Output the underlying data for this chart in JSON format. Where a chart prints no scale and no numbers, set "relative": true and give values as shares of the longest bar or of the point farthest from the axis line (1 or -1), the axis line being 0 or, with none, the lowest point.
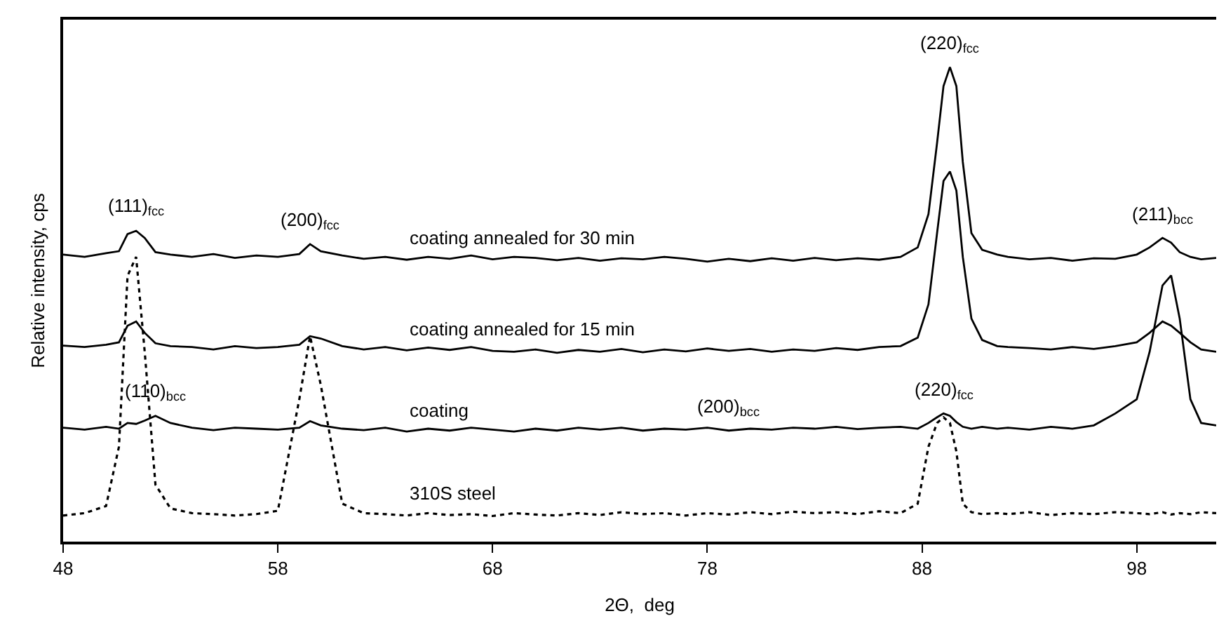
{
  "chart_data": {
    "type": "line",
    "relative": true,
    "xlabel": "2Θ,  deg",
    "ylabel": "Relative intensity, cps",
    "xlim": [
      48,
      101.7
    ],
    "xticks": [
      48,
      58,
      68,
      78,
      88,
      98
    ],
    "legend": false,
    "marker": "none",
    "x": [
      48,
      49,
      50,
      50.6,
      51.0,
      51.4,
      51.8,
      52.3,
      53,
      54,
      55,
      56,
      57,
      58,
      59,
      59.5,
      60,
      61,
      62,
      63,
      64,
      65,
      66,
      67,
      68,
      69,
      70,
      71,
      72,
      73,
      74,
      75,
      76,
      77,
      78,
      79,
      80,
      81,
      82,
      83,
      84,
      85,
      86,
      87,
      87.8,
      88.3,
      88.7,
      89.0,
      89.3,
      89.6,
      89.9,
      90.3,
      90.8,
      91.5,
      92,
      93,
      94,
      95,
      96,
      97,
      98,
      98.6,
      99.2,
      99.6,
      100.0,
      100.5,
      101,
      101.7
    ],
    "series": [
      {
        "name": "coating annealed for 30 min",
        "color": "#000000",
        "line_style": "solid",
        "values": [
          0.605,
          0.6,
          0.608,
          0.612,
          0.648,
          0.655,
          0.64,
          0.61,
          0.605,
          0.6,
          0.606,
          0.598,
          0.603,
          0.6,
          0.606,
          0.627,
          0.612,
          0.603,
          0.596,
          0.6,
          0.594,
          0.6,
          0.596,
          0.603,
          0.595,
          0.6,
          0.598,
          0.593,
          0.598,
          0.592,
          0.597,
          0.595,
          0.6,
          0.596,
          0.59,
          0.596,
          0.591,
          0.597,
          0.592,
          0.598,
          0.593,
          0.597,
          0.594,
          0.6,
          0.62,
          0.69,
          0.84,
          0.96,
          1.0,
          0.96,
          0.8,
          0.65,
          0.615,
          0.605,
          0.6,
          0.595,
          0.598,
          0.592,
          0.597,
          0.596,
          0.605,
          0.62,
          0.64,
          0.63,
          0.61,
          0.6,
          0.595,
          0.598
        ]
      },
      {
        "name": "coating annealed for 15 min",
        "color": "#000000",
        "line_style": "solid",
        "values": [
          0.413,
          0.41,
          0.415,
          0.42,
          0.455,
          0.464,
          0.44,
          0.418,
          0.412,
          0.41,
          0.405,
          0.412,
          0.408,
          0.41,
          0.415,
          0.433,
          0.428,
          0.412,
          0.405,
          0.41,
          0.403,
          0.409,
          0.404,
          0.41,
          0.402,
          0.4,
          0.405,
          0.398,
          0.404,
          0.4,
          0.406,
          0.399,
          0.405,
          0.401,
          0.407,
          0.402,
          0.406,
          0.4,
          0.405,
          0.402,
          0.408,
          0.404,
          0.41,
          0.412,
          0.43,
          0.5,
          0.65,
          0.76,
          0.78,
          0.74,
          0.6,
          0.47,
          0.425,
          0.412,
          0.41,
          0.408,
          0.405,
          0.41,
          0.406,
          0.412,
          0.42,
          0.44,
          0.464,
          0.455,
          0.44,
          0.42,
          0.405,
          0.4
        ]
      },
      {
        "name": "coating",
        "color": "#000000",
        "line_style": "solid",
        "values": [
          0.24,
          0.236,
          0.242,
          0.238,
          0.25,
          0.248,
          0.255,
          0.265,
          0.25,
          0.24,
          0.235,
          0.24,
          0.238,
          0.236,
          0.24,
          0.254,
          0.245,
          0.238,
          0.235,
          0.24,
          0.232,
          0.238,
          0.234,
          0.24,
          0.236,
          0.232,
          0.238,
          0.234,
          0.24,
          0.236,
          0.24,
          0.234,
          0.238,
          0.236,
          0.24,
          0.234,
          0.238,
          0.236,
          0.24,
          0.238,
          0.242,
          0.237,
          0.24,
          0.242,
          0.238,
          0.25,
          0.262,
          0.27,
          0.265,
          0.252,
          0.242,
          0.238,
          0.242,
          0.238,
          0.24,
          0.236,
          0.242,
          0.238,
          0.245,
          0.27,
          0.3,
          0.4,
          0.54,
          0.561,
          0.47,
          0.3,
          0.25,
          0.245
        ]
      },
      {
        "name": "310S steel",
        "color": "#000000",
        "line_style": "dotted",
        "values": [
          0.055,
          0.06,
          0.075,
          0.2,
          0.56,
          0.6,
          0.4,
          0.12,
          0.07,
          0.06,
          0.058,
          0.055,
          0.058,
          0.065,
          0.3,
          0.433,
          0.33,
          0.08,
          0.06,
          0.058,
          0.055,
          0.06,
          0.056,
          0.058,
          0.054,
          0.06,
          0.057,
          0.055,
          0.06,
          0.056,
          0.062,
          0.058,
          0.06,
          0.055,
          0.06,
          0.057,
          0.062,
          0.058,
          0.063,
          0.06,
          0.062,
          0.058,
          0.064,
          0.06,
          0.08,
          0.2,
          0.25,
          0.262,
          0.25,
          0.19,
          0.08,
          0.062,
          0.058,
          0.06,
          0.058,
          0.062,
          0.056,
          0.06,
          0.058,
          0.062,
          0.06,
          0.058,
          0.062,
          0.057,
          0.06,
          0.058,
          0.062,
          0.06
        ]
      }
    ],
    "annotations": [
      {
        "text": "(111)$_{fcc}$",
        "x": 51.4,
        "y": 0.655
      },
      {
        "text": "(200)$_{fcc}$",
        "x": 59.5,
        "y": 0.627
      },
      {
        "text": "(110)$_{bcc}$",
        "x": 52.3,
        "y": 0.265
      },
      {
        "text": "(200)$_{bcc}$",
        "x": 79,
        "y": 0.234
      },
      {
        "text": "(220)$_{fcc}$",
        "x": 89.3,
        "y": 1.0
      },
      {
        "text": "(211)$_{bcc}$",
        "x": 99.2,
        "y": 0.64
      },
      {
        "text": "(220)$_{fcc}$",
        "x": 89.0,
        "y": 0.27
      }
    ]
  }
}
